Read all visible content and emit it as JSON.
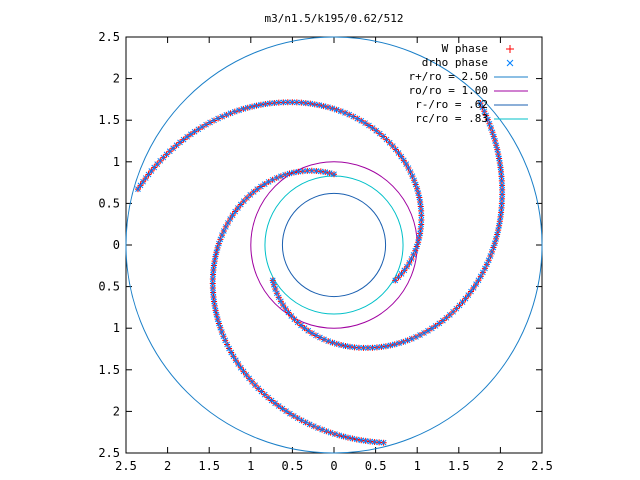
{
  "chart_data": {
    "type": "scatter",
    "title": "m3/n1.5/k195/0.62/512",
    "xlim": [
      -2.5,
      2.5
    ],
    "ylim": [
      -2.5,
      2.5
    ],
    "x_ticks": [
      {
        "value": -2.5,
        "label": "2.5"
      },
      {
        "value": -2,
        "label": "2"
      },
      {
        "value": -1.5,
        "label": "1.5"
      },
      {
        "value": -1,
        "label": "1"
      },
      {
        "value": -0.5,
        "label": "0.5"
      },
      {
        "value": 0,
        "label": "0"
      },
      {
        "value": 0.5,
        "label": "0.5"
      },
      {
        "value": 1,
        "label": "1"
      },
      {
        "value": 1.5,
        "label": "1.5"
      },
      {
        "value": 2,
        "label": "2"
      },
      {
        "value": 2.5,
        "label": "2.5"
      }
    ],
    "y_ticks": [
      {
        "value": 2.5,
        "label": "2.5"
      },
      {
        "value": 2,
        "label": "2"
      },
      {
        "value": 1.5,
        "label": "1.5"
      },
      {
        "value": 1,
        "label": "1"
      },
      {
        "value": 0.5,
        "label": "0.5"
      },
      {
        "value": 0,
        "label": "0"
      },
      {
        "value": -0.5,
        "label": "0.5"
      },
      {
        "value": -1,
        "label": "1"
      },
      {
        "value": -1.5,
        "label": "1.5"
      },
      {
        "value": -2,
        "label": "2"
      },
      {
        "value": -2.5,
        "label": "2.5"
      }
    ],
    "grid": false,
    "legend_position": "top-right",
    "series": [
      {
        "name": "W phase",
        "marker": "plus",
        "color": "#ff0000"
      },
      {
        "name": "drho phase",
        "marker": "cross",
        "color": "#0080ff"
      }
    ],
    "circles": [
      {
        "name": "r+/ro = 2.50",
        "radius": 2.5,
        "color": "#1a7fc8"
      },
      {
        "name": "ro/ro = 1.00",
        "radius": 1.0,
        "color": "#a000a0"
      },
      {
        "name": "r-/ro = .62",
        "radius": 0.62,
        "color": "#1a5fb0"
      },
      {
        "name": "rc/ro = .83",
        "radius": 0.83,
        "color": "#00c0c8"
      }
    ],
    "arms": [
      {
        "phase_deg": 90,
        "r_start": 0.85,
        "r_end": 2.45,
        "points": 100,
        "k": 1.0
      },
      {
        "phase_deg": 210,
        "r_start": 0.85,
        "r_end": 2.45,
        "points": 100,
        "k": 1.0
      },
      {
        "phase_deg": 330,
        "r_start": 0.85,
        "r_end": 2.45,
        "points": 100,
        "k": 1.0
      }
    ]
  }
}
